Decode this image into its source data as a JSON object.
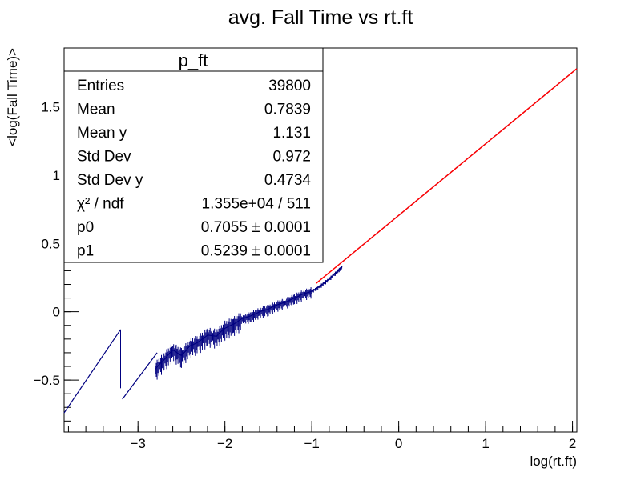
{
  "chart_data": {
    "type": "line",
    "title": "avg. Fall Time vs rt.ft",
    "xlabel": "log(rt.ft)",
    "ylabel": "<log(Fall Time)>",
    "xlim": [
      -3.85,
      2.05
    ],
    "ylim": [
      -0.88,
      1.93
    ],
    "x_ticks": [
      -3,
      -2,
      -1,
      0,
      1,
      2
    ],
    "x_tick_labels": [
      "−3",
      "−2",
      "−1",
      "0",
      "1",
      "2"
    ],
    "y_ticks": [
      -0.5,
      0,
      0.5,
      1,
      1.5
    ],
    "y_tick_labels": [
      "−0.5",
      "0",
      "0.5",
      "1",
      "1.5"
    ],
    "grid": false,
    "series": [
      {
        "name": "p_ft",
        "color": "#000080",
        "segments": [
          {
            "x": [
              -3.85,
              -3.2
            ],
            "y": [
              -0.74,
              -0.13
            ]
          },
          {
            "x": [
              -3.18,
              -2.78
            ],
            "y": [
              -0.64,
              -0.3
            ]
          },
          {
            "x": [
              -2.8,
              -2.7,
              -2.6,
              -2.5,
              -2.4,
              -2.3,
              -2.2,
              -2.1,
              -2.0,
              -1.9,
              -1.8,
              -1.7,
              -1.6,
              -1.5,
              -1.4,
              -1.3,
              -1.2,
              -1.1,
              -1.0,
              -0.9,
              -0.8,
              -0.7,
              -0.65
            ],
            "y": [
              -0.42,
              -0.35,
              -0.28,
              -0.32,
              -0.25,
              -0.22,
              -0.17,
              -0.18,
              -0.12,
              -0.09,
              -0.05,
              -0.03,
              0.0,
              0.02,
              0.05,
              0.07,
              0.1,
              0.13,
              0.15,
              0.19,
              0.24,
              0.3,
              0.33
            ]
          },
          {
            "x": [
              -0.65,
              0,
              1,
              2.05
            ],
            "y": [
              0.365,
              0.705,
              1.229,
              1.779
            ]
          }
        ]
      },
      {
        "name": "fit",
        "color": "#ff0000",
        "x": [
          -0.95,
          2.05
        ],
        "y": [
          0.208,
          1.779
        ]
      }
    ]
  },
  "stats_box": {
    "title": "p_ft",
    "rows": [
      {
        "label": "Entries",
        "value": "39800"
      },
      {
        "label": "Mean",
        "value": "0.7839"
      },
      {
        "label": "Mean y",
        "value": "1.131"
      },
      {
        "label": "Std Dev",
        "value": "0.972"
      },
      {
        "label": "Std Dev y",
        "value": "0.4734"
      },
      {
        "label": "χ² / ndf",
        "value": "1.355e+04 / 511"
      },
      {
        "label": "p0",
        "value": "0.7055 ± 0.0001"
      },
      {
        "label": "p1",
        "value": "0.5239 ± 0.0001"
      }
    ]
  }
}
